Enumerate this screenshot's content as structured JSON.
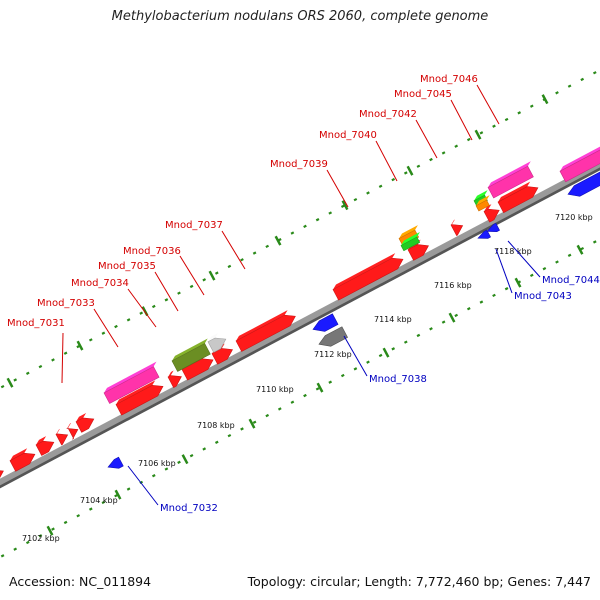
{
  "title": "Methylobacterium nodulans ORS 2060, complete genome",
  "footer": {
    "accession": "Accession: NC_011894",
    "summary": "Topology: circular; Length: 7,772,460 bp; Genes: 7,447"
  },
  "colors": {
    "plus_strand_label": "#d40000",
    "minus_strand_label": "#0000c0",
    "backbone": "#9a9a9a",
    "tick_marks": "#2a8a1a"
  },
  "ticks": [
    "7102 kbp",
    "7104 kbp",
    "7106 kbp",
    "7108 kbp",
    "7110 kbp",
    "7112 kbp",
    "7114 kbp",
    "7116 kbp",
    "7118 kbp",
    "7120 kbp"
  ],
  "gene_labels": [
    {
      "name": "Mnod_7031",
      "strand": "+"
    },
    {
      "name": "Mnod_7033",
      "strand": "+"
    },
    {
      "name": "Mnod_7034",
      "strand": "+"
    },
    {
      "name": "Mnod_7035",
      "strand": "+"
    },
    {
      "name": "Mnod_7036",
      "strand": "+"
    },
    {
      "name": "Mnod_7037",
      "strand": "+"
    },
    {
      "name": "Mnod_7039",
      "strand": "+"
    },
    {
      "name": "Mnod_7040",
      "strand": "+"
    },
    {
      "name": "Mnod_7042",
      "strand": "+"
    },
    {
      "name": "Mnod_7045",
      "strand": "+"
    },
    {
      "name": "Mnod_7046",
      "strand": "+"
    },
    {
      "name": "Mnod_7032",
      "strand": "-"
    },
    {
      "name": "Mnod_7038",
      "strand": "-"
    },
    {
      "name": "Mnod_7043",
      "strand": "-"
    },
    {
      "name": "Mnod_7044",
      "strand": "-"
    }
  ]
}
